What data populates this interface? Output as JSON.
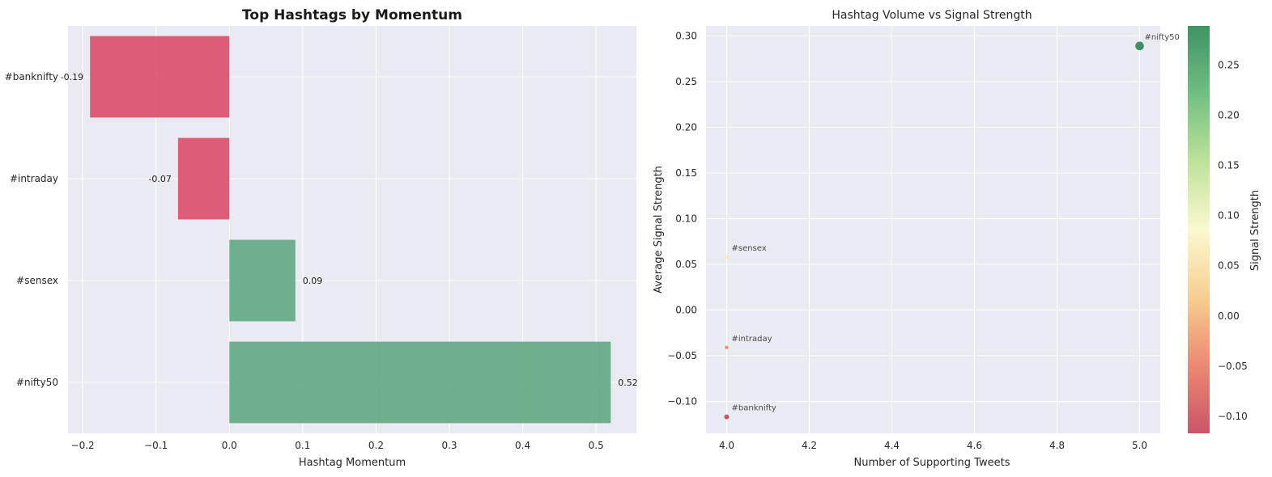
{
  "chart_data": [
    {
      "type": "bar",
      "orientation": "horizontal",
      "title": "Top Hashtags by Momentum",
      "xlabel": "Hashtag Momentum",
      "ylabel": "",
      "categories": [
        "#banknifty",
        "#intraday",
        "#sensex",
        "#nifty50"
      ],
      "values": [
        -0.19,
        -0.07,
        0.09,
        0.52
      ],
      "data_labels": [
        "-0.19",
        "-0.07",
        "0.09",
        "0.52"
      ],
      "xlim": [
        -0.22,
        0.555
      ],
      "xticks": [
        -0.2,
        -0.1,
        0.0,
        0.1,
        0.2,
        0.3,
        0.4,
        0.5
      ],
      "xtick_labels": [
        "−0.2",
        "−0.1",
        "0.0",
        "0.1",
        "0.2",
        "0.3",
        "0.4",
        "0.5"
      ],
      "grid": true,
      "colors": {
        "negative": "#dc4e6a",
        "positive": "#63a882"
      }
    },
    {
      "type": "scatter",
      "title": "Hashtag Volume vs Signal Strength",
      "xlabel": "Number of Supporting Tweets",
      "ylabel": "Average Signal Strength",
      "points": [
        {
          "label": "#nifty50",
          "x": 5,
          "y": 0.289
        },
        {
          "label": "#sensex",
          "x": 4,
          "y": 0.058
        },
        {
          "label": "#intraday",
          "x": 4,
          "y": -0.041
        },
        {
          "label": "#banknifty",
          "x": 4,
          "y": -0.117
        }
      ],
      "xlim": [
        3.95,
        5.05
      ],
      "ylim": [
        -0.135,
        0.311
      ],
      "xticks": [
        4.0,
        4.2,
        4.4,
        4.6,
        4.8,
        5.0
      ],
      "xtick_labels": [
        "4.0",
        "4.2",
        "4.4",
        "4.6",
        "4.8",
        "5.0"
      ],
      "yticks": [
        -0.1,
        -0.05,
        0.0,
        0.05,
        0.1,
        0.15,
        0.2,
        0.25,
        0.3
      ],
      "ytick_labels": [
        "−0.10",
        "−0.05",
        "0.00",
        "0.05",
        "0.10",
        "0.15",
        "0.20",
        "0.25",
        "0.30"
      ],
      "grid": true,
      "colorbar": {
        "label": "Signal Strength",
        "range": [
          -0.117,
          0.289
        ],
        "ticks": [
          -0.1,
          -0.05,
          0.0,
          0.05,
          0.1,
          0.15,
          0.2,
          0.25
        ],
        "tick_labels": [
          "−0.10",
          "−0.05",
          "0.00",
          "0.05",
          "0.10",
          "0.15",
          "0.20",
          "0.25"
        ],
        "colormap": [
          "#c2364f",
          "#e8745a",
          "#f6c57e",
          "#fbf7c8",
          "#b2dd88",
          "#58b36c",
          "#1f7f4a"
        ]
      }
    }
  ]
}
